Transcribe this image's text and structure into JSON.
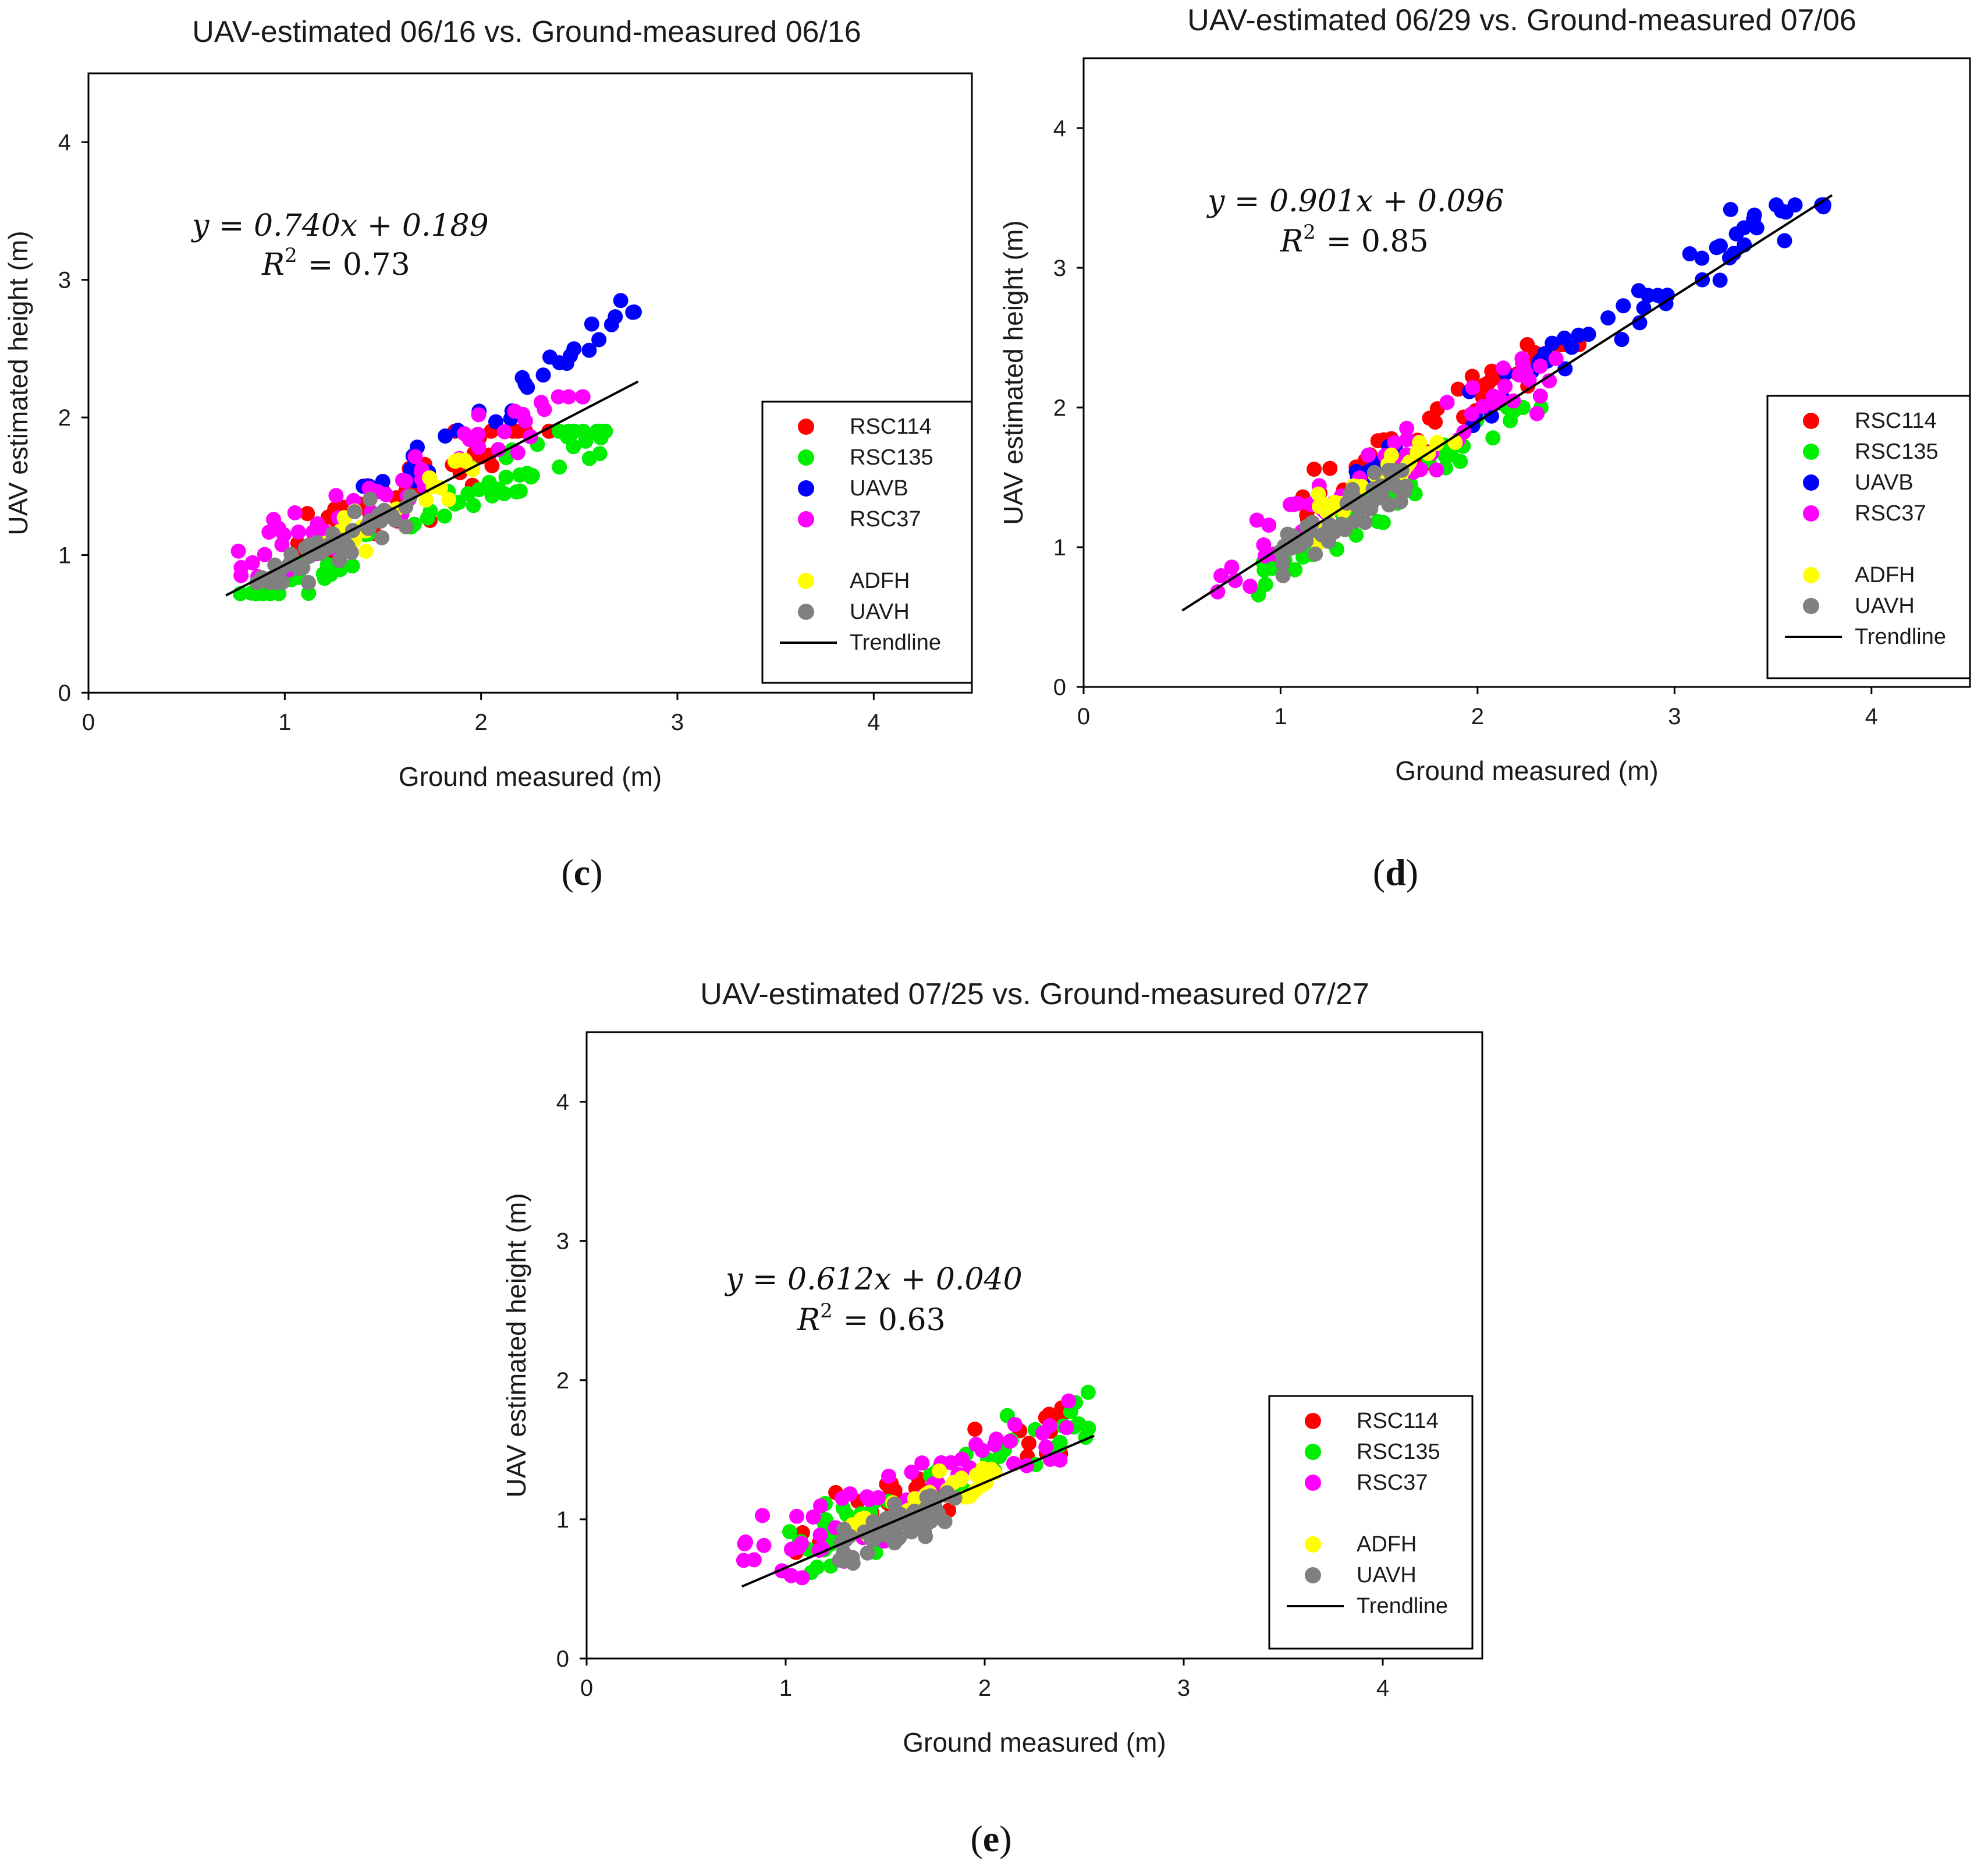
{
  "chart_data": [
    {
      "type": "scatter",
      "panel": "c",
      "caption": "c",
      "title": "UAV-estimated 06/16 vs. Ground-measured 06/16",
      "xlabel": "Ground measured (m)",
      "ylabel": "UAV estimated height (m)",
      "xlim": [
        0,
        4.5
      ],
      "ylim": [
        0,
        4.5
      ],
      "xticks": [
        0,
        1,
        2,
        3,
        4
      ],
      "yticks": [
        0,
        1,
        2,
        3,
        4
      ],
      "equation": "y = 0.740x + 0.189",
      "r2_label": "R",
      "r2_sup": "2",
      "r2_value": "= 0.73",
      "trendline": {
        "slope": 0.74,
        "intercept": 0.189,
        "x_range": [
          0.7,
          2.8
        ]
      },
      "legend_position": "lower-right",
      "series": [
        {
          "name": "RSC114",
          "color": "#ff0000",
          "count": 45,
          "x_range": [
            1.0,
            2.4
          ],
          "y_range": [
            0.9,
            1.9
          ],
          "slope": 0.74,
          "intercept": 0.26,
          "spread": 0.18
        },
        {
          "name": "RSC135",
          "color": "#00ee00",
          "count": 70,
          "x_range": [
            0.75,
            2.65
          ],
          "y_range": [
            0.72,
            1.9
          ],
          "slope": 0.74,
          "intercept": 0.04,
          "spread": 0.14
        },
        {
          "name": "UAVB",
          "color": "#0000ff",
          "count": 32,
          "x_range": [
            1.35,
            2.8
          ],
          "y_range": [
            1.5,
            2.9
          ],
          "slope": 1.05,
          "intercept": -0.1,
          "spread": 0.14
        },
        {
          "name": "RSC37",
          "color": "#ff00ff",
          "count": 60,
          "x_range": [
            0.68,
            2.6
          ],
          "y_range": [
            0.75,
            2.15
          ],
          "slope": 0.74,
          "intercept": 0.33,
          "spread": 0.18
        },
        {
          "name": "ADFH",
          "color": "#ffff00",
          "count": 25,
          "x_range": [
            1.2,
            2.0
          ],
          "y_range": [
            1.0,
            1.75
          ],
          "slope": 0.74,
          "intercept": 0.2,
          "spread": 0.12
        },
        {
          "name": "UAVH",
          "color": "#808080",
          "count": 55,
          "x_range": [
            0.85,
            1.65
          ],
          "y_range": [
            0.8,
            1.45
          ],
          "slope": 0.74,
          "intercept": 0.15,
          "spread": 0.1
        }
      ],
      "legend": [
        "RSC114",
        "RSC135",
        "UAVB",
        "RSC37",
        "",
        "ADFH",
        "UAVH",
        "Trendline"
      ]
    },
    {
      "type": "scatter",
      "panel": "d",
      "caption": "d",
      "title": "UAV-estimated 06/29 vs. Ground-measured 07/06",
      "xlabel": "Ground measured (m)",
      "ylabel": "UAV estimated height (m)",
      "xlim": [
        0,
        4.5
      ],
      "ylim": [
        0,
        4.5
      ],
      "xticks": [
        0,
        1,
        2,
        3,
        4
      ],
      "yticks": [
        0,
        1,
        2,
        3,
        4
      ],
      "equation": "y = 0.901x + 0.096",
      "r2_label": "R",
      "r2_sup": "2",
      "r2_value": "= 0.85",
      "trendline": {
        "slope": 0.901,
        "intercept": 0.096,
        "x_range": [
          0.5,
          3.8
        ]
      },
      "legend_position": "lower-right",
      "series": [
        {
          "name": "RSC114",
          "color": "#ff0000",
          "count": 55,
          "x_range": [
            1.1,
            2.55
          ],
          "y_range": [
            1.2,
            2.45
          ],
          "slope": 0.9,
          "intercept": 0.3,
          "spread": 0.18
        },
        {
          "name": "RSC135",
          "color": "#00ee00",
          "count": 60,
          "x_range": [
            0.85,
            2.4
          ],
          "y_range": [
            0.45,
            2.0
          ],
          "slope": 0.9,
          "intercept": 0.02,
          "spread": 0.15
        },
        {
          "name": "UAVB",
          "color": "#0000ff",
          "count": 60,
          "x_range": [
            1.35,
            3.8
          ],
          "y_range": [
            1.5,
            3.45
          ],
          "slope": 0.9,
          "intercept": 0.2,
          "spread": 0.16
        },
        {
          "name": "RSC37",
          "color": "#ff00ff",
          "count": 60,
          "x_range": [
            0.65,
            2.4
          ],
          "y_range": [
            0.65,
            2.35
          ],
          "slope": 0.9,
          "intercept": 0.22,
          "spread": 0.17
        },
        {
          "name": "ADFH",
          "color": "#ffff00",
          "count": 30,
          "x_range": [
            1.15,
            1.9
          ],
          "y_range": [
            1.0,
            1.75
          ],
          "slope": 0.9,
          "intercept": 0.15,
          "spread": 0.12
        },
        {
          "name": "UAVH",
          "color": "#808080",
          "count": 60,
          "x_range": [
            1.0,
            1.65
          ],
          "y_range": [
            0.7,
            1.55
          ],
          "slope": 0.9,
          "intercept": 0.05,
          "spread": 0.11
        }
      ],
      "legend": [
        "RSC114",
        "RSC135",
        "UAVB",
        "RSC37",
        "",
        "ADFH",
        "UAVH",
        "Trendline"
      ]
    },
    {
      "type": "scatter",
      "panel": "e",
      "caption": "e",
      "title": "UAV-estimated 07/25 vs. Ground-measured 07/27",
      "xlabel": "Ground measured (m)",
      "ylabel": "UAV estimated height (m)",
      "xlim": [
        0,
        4.5
      ],
      "ylim": [
        0,
        4.5
      ],
      "xticks": [
        0,
        1,
        2,
        3,
        4
      ],
      "yticks": [
        0,
        1,
        2,
        3,
        4
      ],
      "equation": "y = 0.612x + 0.040",
      "r2_label": "R",
      "r2_sup": "2",
      "r2_value": "= 0.63",
      "trendline": {
        "slope": 0.612,
        "intercept": 0.04,
        "x_range": [
          0.78,
          2.55
        ]
      },
      "legend_position": "lower-right",
      "series": [
        {
          "name": "RSC114",
          "color": "#ff0000",
          "count": 40,
          "x_range": [
            1.05,
            2.45
          ],
          "y_range": [
            0.55,
            1.8
          ],
          "slope": 0.61,
          "intercept": 0.2,
          "spread": 0.16
        },
        {
          "name": "RSC135",
          "color": "#00ee00",
          "count": 60,
          "x_range": [
            0.95,
            2.55
          ],
          "y_range": [
            0.55,
            1.95
          ],
          "slope": 0.61,
          "intercept": 0.15,
          "spread": 0.18
        },
        {
          "name": "RSC37",
          "color": "#ff00ff",
          "count": 60,
          "x_range": [
            0.78,
            2.45
          ],
          "y_range": [
            0.58,
            1.85
          ],
          "slope": 0.61,
          "intercept": 0.2,
          "spread": 0.18
        },
        {
          "name": "ADFH",
          "color": "#ffff00",
          "count": 30,
          "x_range": [
            1.3,
            2.05
          ],
          "y_range": [
            0.75,
            1.45
          ],
          "slope": 0.61,
          "intercept": 0.1,
          "spread": 0.1
        },
        {
          "name": "UAVH",
          "color": "#808080",
          "count": 60,
          "x_range": [
            1.25,
            1.85
          ],
          "y_range": [
            0.6,
            1.25
          ],
          "slope": 0.61,
          "intercept": 0.0,
          "spread": 0.1
        }
      ],
      "legend": [
        "RSC114",
        "RSC135",
        "RSC37",
        "",
        "ADFH",
        "UAVH",
        "Trendline"
      ]
    }
  ]
}
